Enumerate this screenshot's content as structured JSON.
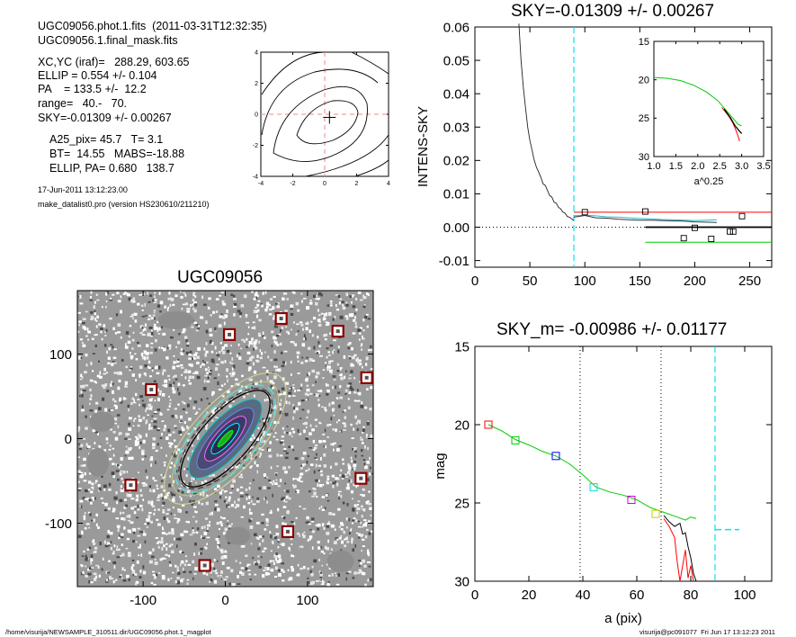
{
  "header": {
    "lines": [
      "UGC09056.phot.1.fits  (2011-03-31T12:32:35)",
      "UGC09056.1.final_mask.fits",
      "XC,YC (iraf)=   288.29, 603.65",
      "ELLIP = 0.554 +/- 0.104",
      "PA    = 133.5 +/-  12.2",
      "range=   40.-   70.",
      "SKY=-0.01309 +/- 0.00267",
      "A25_pix= 45.7   T= 3.1",
      "BT=  14.55   MABS=-18.88",
      "ELLIP, PA= 0.680   138.7"
    ],
    "date": "17-Jun-2011 13:12:23.00",
    "program": "make_datalist0.pro (version HS230610/211210)"
  },
  "footer": {
    "left": "/home/visurija/NEWSAMPLE_310511.dir/UGC09056.phot.1_magplot",
    "right": "visurija@pc091077  Fri Jun 17 13:12:23 2011"
  },
  "colors": {
    "sky_marker": "#00e5ee",
    "profile_red": "#ff0000",
    "profile_green": "#00cc00",
    "profile_black": "#000000",
    "mask_box": "#8b0000",
    "box_colors": [
      "#ff0000",
      "#00cc00",
      "#0000ff",
      "#00dddd",
      "#cc00cc",
      "#cccc00"
    ]
  },
  "chart_data": [
    {
      "id": "contour",
      "type": "line",
      "xlim": [
        -4,
        4
      ],
      "ylim": [
        -4,
        4
      ],
      "xticks": [
        -4,
        -2,
        0,
        2,
        4
      ],
      "yticks": [
        -4,
        -2,
        0,
        2,
        4
      ],
      "center_cross": [
        0.3,
        -0.2
      ],
      "dashed_lines_at": {
        "x": 0,
        "y": 0
      }
    },
    {
      "id": "sky",
      "type": "line",
      "title": "SKY=-0.01309 +/- 0.00267",
      "ylabel": "INTENS-SKY",
      "xlim": [
        0,
        270
      ],
      "ylim": [
        -0.012,
        0.06
      ],
      "xticks": [
        0,
        50,
        100,
        150,
        200,
        250
      ],
      "yticks": [
        -0.01,
        0.0,
        0.01,
        0.02,
        0.03,
        0.04,
        0.05,
        0.06
      ],
      "ytick_labels": [
        "-0.01",
        "0.00",
        "0.01",
        "0.02",
        "0.03",
        "0.04",
        "0.05",
        "0.06"
      ],
      "vline_cyan": 90,
      "profile": [
        [
          40,
          0.061
        ],
        [
          42,
          0.05
        ],
        [
          44,
          0.042
        ],
        [
          46,
          0.036
        ],
        [
          48,
          0.03
        ],
        [
          50,
          0.026
        ],
        [
          52,
          0.023
        ],
        [
          54,
          0.02
        ],
        [
          56,
          0.018
        ],
        [
          58,
          0.0165
        ],
        [
          60,
          0.015
        ],
        [
          62,
          0.013
        ],
        [
          64,
          0.0125
        ],
        [
          66,
          0.011
        ],
        [
          68,
          0.0095
        ],
        [
          70,
          0.009
        ],
        [
          72,
          0.0075
        ],
        [
          74,
          0.0072
        ],
        [
          76,
          0.006
        ],
        [
          78,
          0.0055
        ],
        [
          80,
          0.0045
        ],
        [
          82,
          0.0042
        ],
        [
          84,
          0.0032
        ],
        [
          86,
          0.003
        ],
        [
          88,
          0.0025
        ],
        [
          90,
          0.002
        ]
      ],
      "cyan_series": [
        [
          90,
          0.0034
        ],
        [
          100,
          0.0036
        ],
        [
          110,
          0.0034
        ],
        [
          120,
          0.0031
        ],
        [
          130,
          0.003
        ],
        [
          140,
          0.0028
        ],
        [
          150,
          0.0026
        ],
        [
          160,
          0.0025
        ],
        [
          170,
          0.0023
        ],
        [
          180,
          0.0022
        ],
        [
          190,
          0.0021
        ],
        [
          200,
          0.002
        ],
        [
          210,
          0.0021
        ],
        [
          220,
          0.0022
        ]
      ],
      "dark_series": [
        [
          90,
          0.003
        ],
        [
          100,
          0.0035
        ],
        [
          110,
          0.0028
        ],
        [
          120,
          0.0027
        ],
        [
          130,
          0.0024
        ],
        [
          140,
          0.0022
        ],
        [
          150,
          0.0021
        ],
        [
          160,
          0.0021
        ],
        [
          170,
          0.002
        ],
        [
          180,
          0.0019
        ],
        [
          190,
          0.0018
        ],
        [
          200,
          0.0016
        ],
        [
          210,
          0.0015
        ],
        [
          220,
          0.0014
        ]
      ],
      "red_line": {
        "x": [
          90,
          270
        ],
        "y": 0.0045
      },
      "black_line": {
        "x": [
          155,
          270
        ],
        "y": 0.0
      },
      "green_line": {
        "x": [
          155,
          270
        ],
        "y": -0.0045
      },
      "squares": [
        [
          100,
          0.0045
        ],
        [
          155,
          0.0047
        ],
        [
          190,
          -0.0033
        ],
        [
          200,
          -0.0002
        ],
        [
          215,
          -0.0035
        ],
        [
          232,
          -0.0013
        ],
        [
          235,
          -0.0013
        ],
        [
          243,
          0.0033
        ]
      ]
    },
    {
      "id": "inset",
      "type": "line",
      "xlabel": "a^0.25",
      "xlim": [
        1.0,
        3.5
      ],
      "ylim": [
        15,
        30
      ],
      "y_inverted": true,
      "xticks": [
        1.0,
        1.5,
        2.0,
        2.5,
        3.0,
        3.5
      ],
      "xtick_labels": [
        "1.0",
        "1.5",
        "2.0",
        "2.5",
        "3.0",
        "3.5"
      ],
      "yticks": [
        15,
        20,
        25,
        30
      ],
      "green": [
        [
          1.0,
          19.7
        ],
        [
          1.3,
          19.8
        ],
        [
          1.6,
          20.1
        ],
        [
          1.9,
          20.7
        ],
        [
          2.2,
          21.6
        ],
        [
          2.45,
          22.7
        ],
        [
          2.65,
          24.0
        ],
        [
          2.8,
          25.0
        ],
        [
          2.92,
          25.8
        ],
        [
          3.0,
          26.0
        ]
      ],
      "red": [
        [
          2.55,
          23.6
        ],
        [
          2.7,
          24.7
        ],
        [
          2.8,
          25.6
        ],
        [
          2.9,
          27.0
        ],
        [
          2.95,
          28.0
        ]
      ],
      "black": [
        [
          2.6,
          23.8
        ],
        [
          2.75,
          25.0
        ],
        [
          2.85,
          26.0
        ],
        [
          2.95,
          26.7
        ],
        [
          3.0,
          27.0
        ]
      ]
    },
    {
      "id": "image",
      "type": "scatter",
      "title": "UGC09056",
      "xlim": [
        -180,
        180
      ],
      "ylim": [
        -175,
        175
      ],
      "xticks": [
        -100,
        0,
        100
      ],
      "yticks": [
        -100,
        0,
        100
      ],
      "mask_boxes": [
        [
          5,
          123
        ],
        [
          68,
          142
        ],
        [
          137,
          127
        ],
        [
          -90,
          58
        ],
        [
          172,
          72
        ],
        [
          -115,
          -55
        ],
        [
          165,
          -47
        ],
        [
          76,
          -110
        ],
        [
          -25,
          -150
        ]
      ],
      "ellipse": {
        "pa_deg": -48,
        "axes": [
          [
            12,
            3
          ],
          [
            22,
            7
          ],
          [
            32,
            11
          ],
          [
            44,
            15
          ],
          [
            56,
            21
          ],
          [
            68,
            27
          ],
          [
            80,
            33
          ],
          [
            92,
            38
          ]
        ]
      }
    },
    {
      "id": "magprof",
      "type": "line",
      "title": "SKY_m= -0.00986 +/- 0.01177",
      "xlabel": "a (pix)",
      "ylabel": "mag",
      "xlim": [
        0,
        110
      ],
      "ylim": [
        15,
        30
      ],
      "y_inverted": true,
      "xticks": [
        0,
        20,
        40,
        60,
        80,
        100
      ],
      "yticks": [
        15,
        20,
        25,
        30
      ],
      "vlines_dotted": [
        39,
        69
      ],
      "vline_cyan": 89,
      "sky_dash": {
        "x": [
          89,
          98
        ],
        "y": 26.7
      },
      "green": [
        [
          5,
          20.0
        ],
        [
          10,
          20.4
        ],
        [
          15,
          20.95
        ],
        [
          20,
          21.3
        ],
        [
          25,
          21.7
        ],
        [
          30,
          22.0
        ],
        [
          35,
          22.5
        ],
        [
          40,
          23.2
        ],
        [
          45,
          24.0
        ],
        [
          50,
          24.3
        ],
        [
          55,
          24.5
        ],
        [
          60,
          24.8
        ],
        [
          65,
          25.3
        ],
        [
          70,
          25.6
        ],
        [
          75,
          25.9
        ],
        [
          78,
          26.1
        ],
        [
          80,
          25.9
        ],
        [
          82,
          26.0
        ]
      ],
      "black_tail": [
        [
          70,
          25.8
        ],
        [
          72,
          26.2
        ],
        [
          74,
          26.5
        ],
        [
          76,
          26.3
        ],
        [
          77,
          27.0
        ],
        [
          78,
          26.9
        ],
        [
          79,
          27.8
        ],
        [
          80,
          28.5
        ],
        [
          81,
          29.5
        ],
        [
          82,
          30.0
        ]
      ],
      "red_tail": [
        [
          70,
          26.0
        ],
        [
          72,
          26.5
        ],
        [
          74,
          27.2
        ],
        [
          75,
          28.8
        ],
        [
          76,
          30.0
        ],
        [
          77,
          29.0
        ],
        [
          78,
          28.0
        ],
        [
          79,
          29.8
        ],
        [
          80,
          29.0
        ],
        [
          81,
          30.0
        ]
      ],
      "squares": [
        [
          5,
          20.0
        ],
        [
          15,
          21.0
        ],
        [
          30,
          22.0
        ],
        [
          44,
          24.0
        ],
        [
          58,
          24.8
        ],
        [
          67,
          25.7
        ]
      ]
    }
  ]
}
